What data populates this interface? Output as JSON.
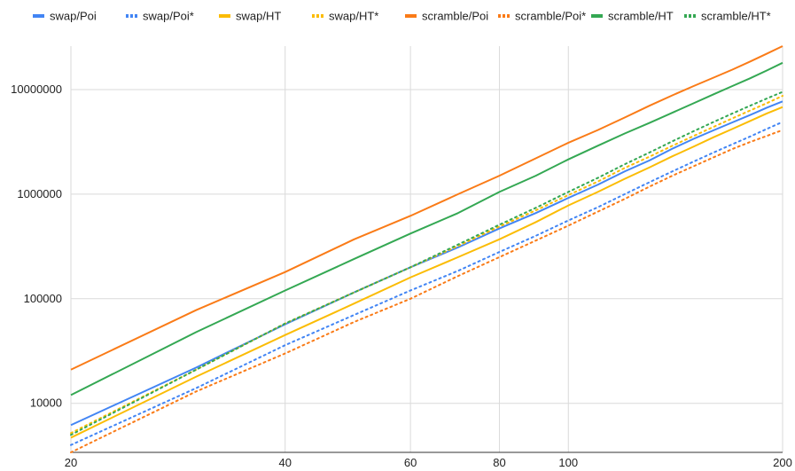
{
  "chart_data": {
    "type": "line",
    "title": "",
    "xlabel": "",
    "ylabel": "",
    "x_scale": "log",
    "y_scale": "log",
    "xlim": [
      20,
      200
    ],
    "ylim": [
      3400,
      26000000
    ],
    "grid": true,
    "legend_position": "top",
    "x_ticks": [
      {
        "value": 20,
        "label": "20"
      },
      {
        "value": 40,
        "label": "40"
      },
      {
        "value": 60,
        "label": "60"
      },
      {
        "value": 80,
        "label": "80"
      },
      {
        "value": 100,
        "label": "100"
      },
      {
        "value": 200,
        "label": "200"
      }
    ],
    "y_ticks": [
      {
        "value": 10000,
        "label": "10000"
      },
      {
        "value": 100000,
        "label": "100000"
      },
      {
        "value": 1000000,
        "label": "1000000"
      },
      {
        "value": 10000000,
        "label": "10000000"
      }
    ],
    "x": [
      20,
      30,
      40,
      50,
      60,
      70,
      80,
      90,
      100,
      110,
      120,
      130,
      140,
      150,
      160,
      170,
      180,
      190,
      200
    ],
    "series": [
      {
        "name": "swap/Poi",
        "color": "#4285f4",
        "dash": "solid",
        "values": [
          6200,
          22000,
          57000,
          115000,
          200000,
          310000,
          470000,
          660000,
          920000,
          1230000,
          1650000,
          2100000,
          2720000,
          3380000,
          4080000,
          4850000,
          5700000,
          6700000,
          7700000
        ]
      },
      {
        "name": "swap/Poi*",
        "color": "#4285f4",
        "dash": "dotted",
        "values": [
          4000,
          14000,
          36000,
          70000,
          120000,
          185000,
          280000,
          400000,
          560000,
          750000,
          1000000,
          1300000,
          1650000,
          2050000,
          2500000,
          3000000,
          3550000,
          4200000,
          4900000
        ]
      },
      {
        "name": "swap/HT",
        "color": "#fbbc04",
        "dash": "solid",
        "values": [
          4700,
          18000,
          45000,
          90000,
          160000,
          250000,
          370000,
          540000,
          780000,
          1050000,
          1400000,
          1800000,
          2300000,
          2850000,
          3500000,
          4200000,
          5000000,
          5900000,
          6800000
        ]
      },
      {
        "name": "swap/HT*",
        "color": "#fbbc04",
        "dash": "dotted",
        "values": [
          5200,
          21000,
          58000,
          115000,
          200000,
          320000,
          490000,
          700000,
          980000,
          1320000,
          1780000,
          2280000,
          2900000,
          3600000,
          4400000,
          5300000,
          6300000,
          7400000,
          8700000
        ]
      },
      {
        "name": "scramble/Poi",
        "color": "#fa7b17",
        "dash": "solid",
        "values": [
          21000,
          78000,
          180000,
          370000,
          620000,
          1000000,
          1500000,
          2200000,
          3100000,
          4100000,
          5400000,
          7000000,
          8800000,
          10800000,
          13000000,
          15500000,
          18500000,
          22000000,
          26000000
        ]
      },
      {
        "name": "scramble/Poi*",
        "color": "#fa7b17",
        "dash": "dotted",
        "values": [
          3400,
          13000,
          30000,
          60000,
          100000,
          165000,
          250000,
          360000,
          500000,
          680000,
          900000,
          1180000,
          1500000,
          1850000,
          2250000,
          2700000,
          3150000,
          3600000,
          4100000
        ]
      },
      {
        "name": "scramble/HT",
        "color": "#34a853",
        "dash": "solid",
        "values": [
          12000,
          48000,
          120000,
          240000,
          420000,
          660000,
          1050000,
          1500000,
          2150000,
          2900000,
          3800000,
          4800000,
          6000000,
          7400000,
          9000000,
          10800000,
          12800000,
          15200000,
          18000000
        ]
      },
      {
        "name": "scramble/HT*",
        "color": "#34a853",
        "dash": "dotted",
        "values": [
          5000,
          21000,
          58000,
          115000,
          200000,
          330000,
          510000,
          740000,
          1050000,
          1430000,
          1930000,
          2500000,
          3200000,
          4000000,
          4900000,
          5900000,
          7000000,
          8200000,
          9500000
        ]
      }
    ]
  }
}
